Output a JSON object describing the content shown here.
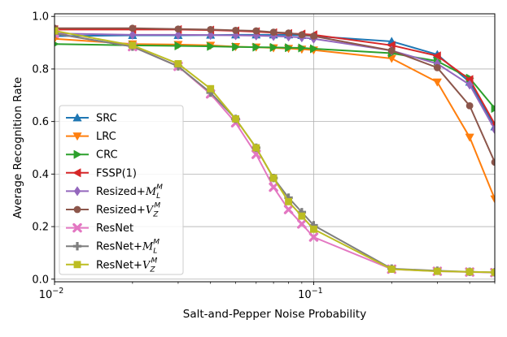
{
  "chart_data": {
    "type": "line",
    "title": "",
    "xlabel": "Salt-and-Pepper Noise Probability",
    "ylabel": "Average Recognition Rate",
    "xscale": "log",
    "xlim": [
      0.01,
      0.5
    ],
    "ylim": [
      -0.01,
      1.01
    ],
    "xticks": [
      {
        "value": 0.01,
        "base": "10",
        "exp": "−2"
      },
      {
        "value": 0.1,
        "base": "10",
        "exp": "−1"
      }
    ],
    "yticks": [
      {
        "value": 0.0,
        "label": "0.0"
      },
      {
        "value": 0.2,
        "label": "0.2"
      },
      {
        "value": 0.4,
        "label": "0.4"
      },
      {
        "value": 0.6,
        "label": "0.6"
      },
      {
        "value": 0.8,
        "label": "0.8"
      },
      {
        "value": 1.0,
        "label": "1.0"
      }
    ],
    "grid": true,
    "legend_position": "left",
    "x": [
      0.01,
      0.02,
      0.03,
      0.04,
      0.05,
      0.06,
      0.07,
      0.08,
      0.09,
      0.1,
      0.2,
      0.3,
      0.4,
      0.5
    ],
    "series": [
      {
        "name": "SRC",
        "label_main": "SRC",
        "label_sup": "",
        "label_sub": "",
        "color": "#1f77b4",
        "marker": "triangle-up",
        "values": [
          0.925,
          0.928,
          0.928,
          0.929,
          0.93,
          0.93,
          0.93,
          0.93,
          0.928,
          0.925,
          0.905,
          0.855,
          0.75,
          0.58
        ]
      },
      {
        "name": "LRC",
        "label_main": "LRC",
        "label_sup": "",
        "label_sub": "",
        "color": "#ff7f0e",
        "marker": "triangle-down",
        "values": [
          0.915,
          0.895,
          0.893,
          0.89,
          0.885,
          0.883,
          0.88,
          0.878,
          0.875,
          0.872,
          0.84,
          0.75,
          0.54,
          0.305
        ]
      },
      {
        "name": "CRC",
        "label_main": "CRC",
        "label_sup": "",
        "label_sub": "",
        "color": "#2ca02c",
        "marker": "triangle-right",
        "values": [
          0.895,
          0.89,
          0.888,
          0.886,
          0.884,
          0.883,
          0.882,
          0.881,
          0.88,
          0.877,
          0.86,
          0.83,
          0.765,
          0.65
        ]
      },
      {
        "name": "FSSP(1)",
        "label_main": "FSSP(1)",
        "label_sup": "",
        "label_sub": "",
        "color": "#d62728",
        "marker": "triangle-left",
        "values": [
          0.95,
          0.95,
          0.95,
          0.948,
          0.945,
          0.942,
          0.938,
          0.935,
          0.933,
          0.93,
          0.89,
          0.85,
          0.76,
          0.59
        ]
      },
      {
        "name": "Resized+M_L^M",
        "label_main": "Resized+",
        "label_script": "M",
        "label_sup": "M",
        "label_sub": "L",
        "color": "#9467bd",
        "marker": "diamond",
        "values": [
          0.935,
          0.93,
          0.93,
          0.929,
          0.928,
          0.927,
          0.925,
          0.923,
          0.92,
          0.915,
          0.87,
          0.82,
          0.74,
          0.57
        ]
      },
      {
        "name": "Resized+V_Z^M",
        "label_main": "Resized+",
        "label_script": "V",
        "label_sup": "M",
        "label_sub": "Z",
        "color": "#8c564b",
        "marker": "circle",
        "values": [
          0.955,
          0.955,
          0.952,
          0.95,
          0.947,
          0.945,
          0.94,
          0.937,
          0.93,
          0.925,
          0.87,
          0.805,
          0.66,
          0.445
        ]
      },
      {
        "name": "ResNet",
        "label_main": "ResNet",
        "label_sup": "",
        "label_sub": "",
        "color": "#e377c2",
        "marker": "x",
        "values": [
          0.935,
          0.885,
          0.81,
          0.705,
          0.595,
          0.475,
          0.35,
          0.265,
          0.21,
          0.16,
          0.038,
          0.03,
          0.027,
          0.025
        ]
      },
      {
        "name": "ResNet+M_L^M",
        "label_main": "ResNet+",
        "label_script": "M",
        "label_sup": "M",
        "label_sub": "L",
        "color": "#7f7f7f",
        "marker": "plus",
        "values": [
          0.935,
          0.885,
          0.81,
          0.71,
          0.61,
          0.5,
          0.385,
          0.31,
          0.255,
          0.205,
          0.04,
          0.032,
          0.028,
          0.026
        ]
      },
      {
        "name": "ResNet+V_Z^M",
        "label_main": "ResNet+",
        "label_script": "V",
        "label_sup": "M",
        "label_sub": "Z",
        "color": "#bcbd22",
        "marker": "square",
        "values": [
          0.945,
          0.89,
          0.82,
          0.725,
          0.61,
          0.5,
          0.385,
          0.295,
          0.24,
          0.19,
          0.038,
          0.03,
          0.028,
          0.026
        ]
      }
    ]
  }
}
